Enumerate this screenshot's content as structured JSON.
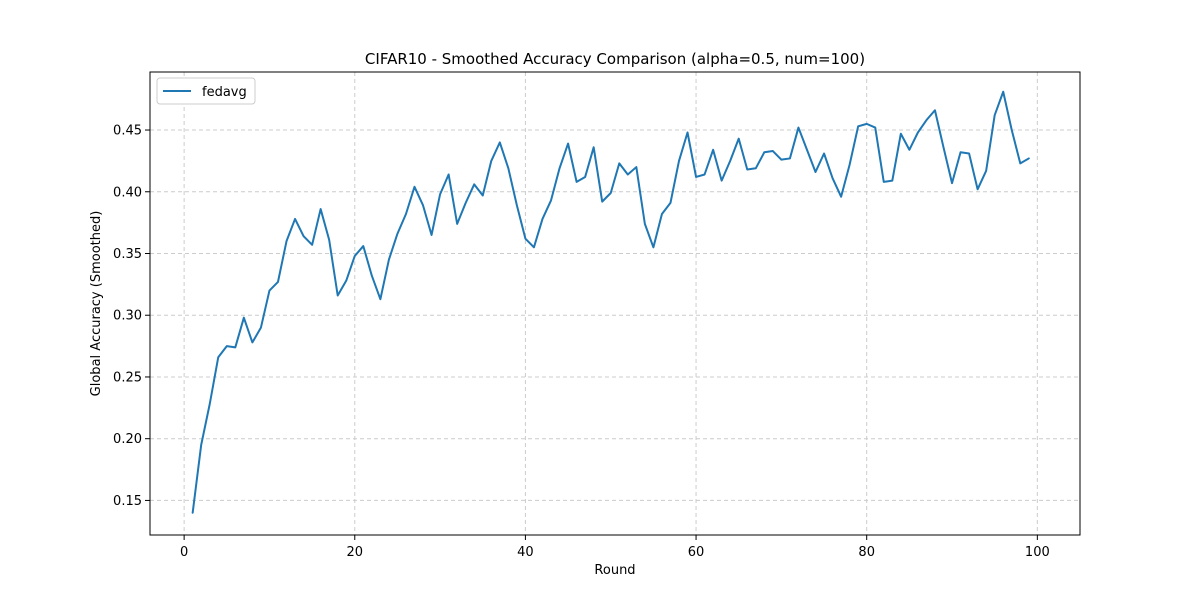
{
  "chart_data": {
    "type": "line",
    "title": "CIFAR10 - Smoothed Accuracy Comparison (alpha=0.5, num=100)",
    "xlabel": "Round",
    "ylabel": "Global Accuracy (Smoothed)",
    "xlim": [
      -4,
      105
    ],
    "ylim": [
      0.122,
      0.497
    ],
    "x_ticks": [
      0,
      20,
      40,
      60,
      80,
      100
    ],
    "y_ticks": [
      0.15,
      0.2,
      0.25,
      0.3,
      0.35,
      0.4,
      0.45
    ],
    "x_tick_labels": [
      "0",
      "20",
      "40",
      "60",
      "80",
      "100"
    ],
    "y_tick_labels": [
      "0.15",
      "0.20",
      "0.25",
      "0.30",
      "0.35",
      "0.40",
      "0.45"
    ],
    "grid": true,
    "legend_position": "top-left",
    "legend": [
      "fedavg"
    ],
    "series": [
      {
        "name": "fedavg",
        "color": "#1f77b4",
        "x": [
          1,
          2,
          3,
          4,
          5,
          6,
          7,
          8,
          9,
          10,
          11,
          12,
          13,
          14,
          15,
          16,
          17,
          18,
          19,
          20,
          21,
          22,
          23,
          24,
          25,
          26,
          27,
          28,
          29,
          30,
          31,
          32,
          33,
          34,
          35,
          36,
          37,
          38,
          39,
          40,
          41,
          42,
          43,
          44,
          45,
          46,
          47,
          48,
          49,
          50,
          51,
          52,
          53,
          54,
          55,
          56,
          57,
          58,
          59,
          60,
          61,
          62,
          63,
          64,
          65,
          66,
          67,
          68,
          69,
          70,
          71,
          72,
          73,
          74,
          75,
          76,
          77,
          78,
          79,
          80,
          81,
          82,
          83,
          84,
          85,
          86,
          87,
          88,
          89,
          90,
          91,
          92,
          93,
          94,
          95,
          96,
          97,
          98,
          99
        ],
        "values": [
          0.14,
          0.195,
          0.228,
          0.266,
          0.275,
          0.274,
          0.298,
          0.278,
          0.29,
          0.32,
          0.327,
          0.36,
          0.378,
          0.364,
          0.357,
          0.386,
          0.361,
          0.316,
          0.328,
          0.348,
          0.356,
          0.332,
          0.313,
          0.345,
          0.366,
          0.382,
          0.404,
          0.389,
          0.365,
          0.398,
          0.414,
          0.374,
          0.391,
          0.406,
          0.397,
          0.425,
          0.44,
          0.419,
          0.389,
          0.362,
          0.355,
          0.378,
          0.393,
          0.419,
          0.439,
          0.408,
          0.412,
          0.436,
          0.392,
          0.399,
          0.423,
          0.414,
          0.42,
          0.374,
          0.355,
          0.382,
          0.391,
          0.425,
          0.448,
          0.412,
          0.414,
          0.434,
          0.409,
          0.425,
          0.443,
          0.418,
          0.419,
          0.432,
          0.433,
          0.426,
          0.427,
          0.452,
          0.434,
          0.416,
          0.431,
          0.411,
          0.396,
          0.422,
          0.453,
          0.455,
          0.452,
          0.408,
          0.409,
          0.447,
          0.434,
          0.448,
          0.458,
          0.466,
          0.436,
          0.407,
          0.432,
          0.431,
          0.402,
          0.417,
          0.462,
          0.481,
          0.45,
          0.423,
          0.427
        ]
      }
    ]
  }
}
